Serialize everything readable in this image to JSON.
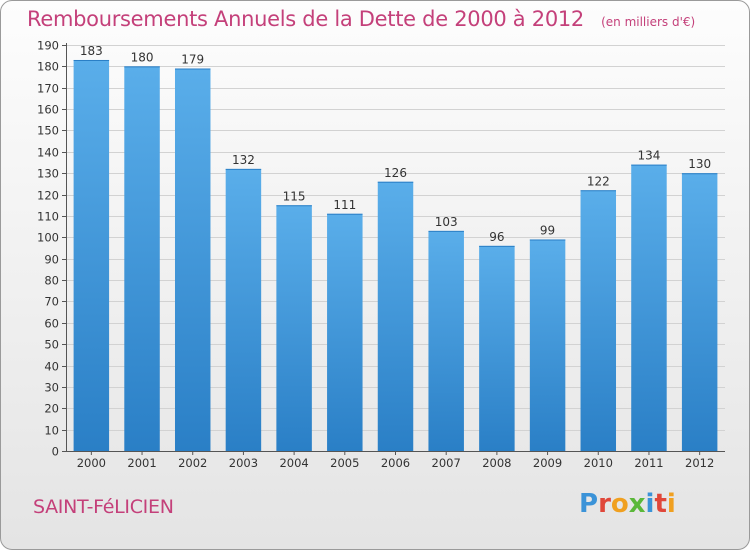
{
  "chart_data": {
    "type": "bar",
    "title": "Remboursements Annuels de la Dette de 2000 à 2012",
    "unit_note": "(en milliers d'€)",
    "categories": [
      "2000",
      "2001",
      "2002",
      "2003",
      "2004",
      "2005",
      "2006",
      "2007",
      "2008",
      "2009",
      "2010",
      "2011",
      "2012"
    ],
    "values": [
      183,
      180,
      179,
      132,
      115,
      111,
      126,
      103,
      96,
      99,
      122,
      134,
      130
    ],
    "ylim": [
      0,
      190
    ],
    "ytick_step": 10,
    "grid": true,
    "bar_color_top": "#5aaeea",
    "bar_color_bottom": "#2a7fc6"
  },
  "footer": {
    "city": "SAINT-FéLICIEN",
    "brand": [
      "P",
      "r",
      "o",
      "x",
      "i",
      "t",
      "i"
    ],
    "brand_colors": [
      "#3b93d8",
      "#e0473a",
      "#f0a020",
      "#5bb83a",
      "#3b93d8",
      "#e0473a",
      "#f0a020"
    ]
  }
}
